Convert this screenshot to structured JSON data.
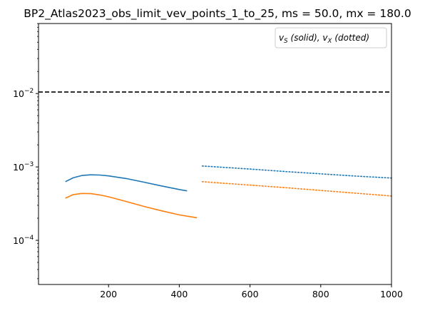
{
  "chart_data": {
    "type": "line",
    "title": "BP2_Atlas2023_obs_limit_vev_points_1_to_25, ms = 50.0, mx = 180.0",
    "xlabel": "",
    "ylabel": "",
    "xlim": [
      2,
      1000
    ],
    "ylim": [
      2.5e-05,
      0.09
    ],
    "y_scale": "log",
    "grid": false,
    "x_ticks": [
      200,
      400,
      600,
      800,
      1000
    ],
    "y_ticks": [
      {
        "value": 0.0001,
        "base": "10",
        "exp": "−4"
      },
      {
        "value": 0.001,
        "base": "10",
        "exp": "−3"
      },
      {
        "value": 0.01,
        "base": "10",
        "exp": "−2"
      }
    ],
    "legend": {
      "placement": "top-right",
      "label_s": "S",
      "label_s_note": "(solid), ",
      "label_x": "X",
      "label_x_note": "(dotted)"
    },
    "hline": {
      "y": 0.0105,
      "style": "dashed",
      "color": "#000000"
    },
    "series": [
      {
        "style": "solid",
        "color": "#1f77b4",
        "x": [
          78,
          100,
          125,
          150,
          175,
          200,
          250,
          300,
          350,
          400,
          422
        ],
        "y": [
          0.00063,
          0.00071,
          0.000765,
          0.00078,
          0.000775,
          0.000755,
          0.000695,
          0.00062,
          0.00055,
          0.000492,
          0.000472
        ]
      },
      {
        "style": "solid",
        "color": "#ff7f0e",
        "x": [
          78,
          100,
          125,
          150,
          175,
          200,
          250,
          300,
          350,
          400,
          450
        ],
        "y": [
          0.000375,
          0.00042,
          0.000435,
          0.000432,
          0.000415,
          0.000392,
          0.000338,
          0.00029,
          0.000252,
          0.000222,
          0.000203
        ]
      },
      {
        "style": "dotted",
        "color": "#1f77b4",
        "x": [
          465,
          500,
          600,
          700,
          800,
          900,
          1000
        ],
        "y": [
          0.00103,
          0.001005,
          0.000935,
          0.000865,
          0.000805,
          0.00075,
          0.000705
        ]
      },
      {
        "style": "dotted",
        "color": "#ff7f0e",
        "x": [
          465,
          500,
          600,
          700,
          800,
          900,
          1000
        ],
        "y": [
          0.00063,
          0.000612,
          0.000566,
          0.000522,
          0.000478,
          0.000438,
          0.000402
        ]
      }
    ]
  }
}
